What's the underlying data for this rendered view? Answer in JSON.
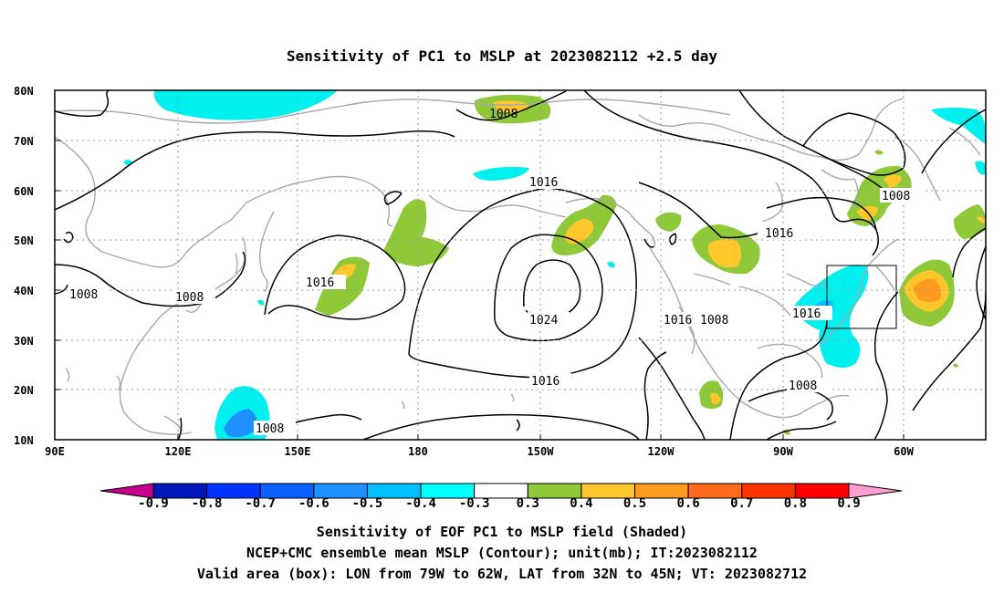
{
  "title": "Sensitivity of PC1 to MSLP at 2023082112 +2.5 day",
  "lat_labels": [
    "80N",
    "70N",
    "60N",
    "50N",
    "40N",
    "30N",
    "20N",
    "10N"
  ],
  "lon_labels": [
    "90E",
    "120E",
    "150E",
    "180",
    "150W",
    "120W",
    "90W",
    "60W"
  ],
  "contour_labels": [
    "1008",
    "1016",
    "1008",
    "1008",
    "1016",
    "1024",
    "1008",
    "1016",
    "1016",
    "1008",
    "1016",
    "1016",
    "1008",
    "1008"
  ],
  "colorbar": {
    "labels": [
      "-0.9",
      "-0.8",
      "-0.7",
      "-0.6",
      "-0.5",
      "-0.4",
      "-0.3",
      "0.3",
      "0.4",
      "0.5",
      "0.6",
      "0.7",
      "0.8",
      "0.9"
    ],
    "colors": [
      "#c4008f",
      "#0018b8",
      "#0033ff",
      "#0a5fff",
      "#1e90ff",
      "#00bfff",
      "#00ffff",
      "#ffffff",
      "#8fc93a",
      "#ffc72c",
      "#ff9a1f",
      "#ff6a1a",
      "#ff3300",
      "#ff0000",
      "#ff9ed2"
    ]
  },
  "footer": {
    "line1": "Sensitivity of EOF PC1 to MSLP field (Shaded)",
    "line2": "NCEP+CMC ensemble mean MSLP (Contour); unit(mb); IT:2023082112",
    "line3": "Valid area (box): LON from 79W to 62W, LAT from 32N to 45N; VT: 2023082712"
  }
}
